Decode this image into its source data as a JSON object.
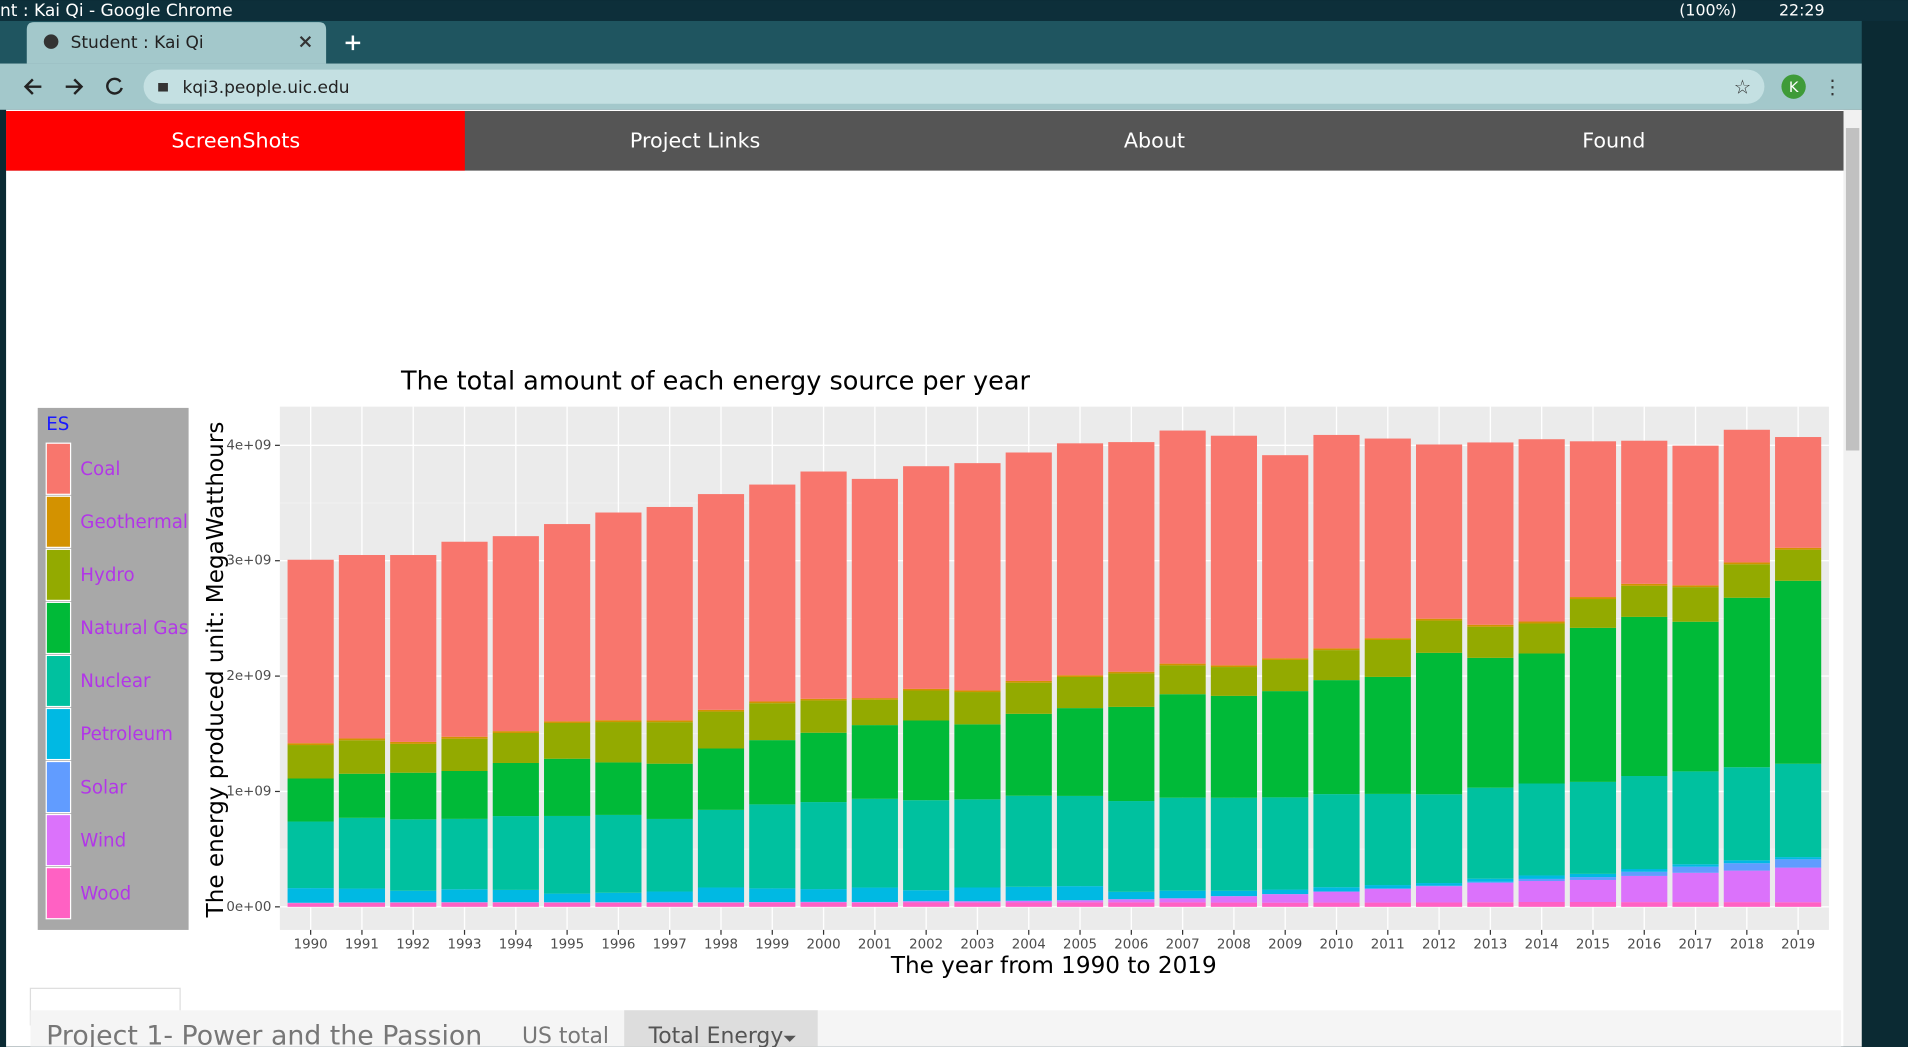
{
  "window": {
    "title": "nt : Kai Qi - Google Chrome",
    "battery": "(100%)",
    "time": "22:29"
  },
  "browser": {
    "tab": "Student : Kai Qi",
    "url": "kqi3.people.uic.edu",
    "profile": "K"
  },
  "nav": [
    "ScreenShots",
    "Project Links",
    "About",
    "Found"
  ],
  "footer": {
    "title": "Project 1- Power and the Passion",
    "tabs": [
      "US total",
      "Total Energy"
    ]
  },
  "chart_data": {
    "type": "stacked_bar",
    "title": "The total amount of each energy source per year",
    "x_label": "The year from 1990 to 2019",
    "y_label": "The energy produced unit: MegaWatthours",
    "legend_title": "ES",
    "categories": [
      "1990",
      "1991",
      "1992",
      "1993",
      "1994",
      "1995",
      "1996",
      "1997",
      "1998",
      "1999",
      "2000",
      "2001",
      "2002",
      "2003",
      "2004",
      "2005",
      "2006",
      "2007",
      "2008",
      "2009",
      "2010",
      "2011",
      "2012",
      "2013",
      "2014",
      "2015",
      "2016",
      "2017",
      "2018",
      "2019"
    ],
    "ylim": [
      -200000000,
      4335000000
    ],
    "yticks": [
      {
        "value": 0,
        "label": "0e+00"
      },
      {
        "value": 1000000000,
        "label": "1e+09"
      },
      {
        "value": 2000000000,
        "label": "2e+09"
      },
      {
        "value": 3000000000,
        "label": "3e+09"
      },
      {
        "value": 4000000000,
        "label": "4e+09"
      }
    ],
    "grid": true,
    "legend": "left",
    "series": [
      {
        "name": "Coal",
        "color": "#F8766D",
        "values": [
          1590000000.0,
          1590000000.0,
          1620000000.0,
          1690000000.0,
          1690000000.0,
          1710000000.0,
          1800000000.0,
          1850000000.0,
          1870000000.0,
          1880000000.0,
          1970000000.0,
          1900000000.0,
          1930000000.0,
          1970000000.0,
          1980000000.0,
          2010000000.0,
          1990000000.0,
          2020000000.0,
          1990000000.0,
          1760000000.0,
          1850000000.0,
          1730000000.0,
          1510000000.0,
          1580000000.0,
          1580000000.0,
          1350000000.0,
          1240000000.0,
          1210000000.0,
          1150000000.0,
          960000000.0
        ]
      },
      {
        "name": "Geothermal",
        "color": "#D39200",
        "values": [
          16000000.0,
          16000000.0,
          17000000.0,
          17000000.0,
          16000000.0,
          14000000.0,
          16000000.0,
          15000000.0,
          15000000.0,
          15000000.0,
          14000000.0,
          14000000.0,
          14000000.0,
          14000000.0,
          15000000.0,
          15000000.0,
          15000000.0,
          15000000.0,
          15000000.0,
          15000000.0,
          15000000.0,
          16000000.0,
          16000000.0,
          17000000.0,
          17000000.0,
          17000000.0,
          17000000.0,
          16000000.0,
          16000000.0,
          16000000.0
        ]
      },
      {
        "name": "Hydro",
        "color": "#93AA00",
        "values": [
          290000000.0,
          290000000.0,
          250000000.0,
          280000000.0,
          260000000.0,
          310000000.0,
          350000000.0,
          360000000.0,
          320000000.0,
          320000000.0,
          280000000.0,
          220000000.0,
          260000000.0,
          280000000.0,
          270000000.0,
          270000000.0,
          290000000.0,
          250000000.0,
          250000000.0,
          270000000.0,
          260000000.0,
          320000000.0,
          280000000.0,
          270000000.0,
          260000000.0,
          250000000.0,
          270000000.0,
          300000000.0,
          290000000.0,
          270000000.0
        ]
      },
      {
        "name": "Natural Gas",
        "color": "#00BA38",
        "values": [
          373000000.0,
          382000000.0,
          404000000.0,
          415000000.0,
          460000000.0,
          496000000.0,
          455000000.0,
          479000000.0,
          532000000.0,
          557000000.0,
          601000000.0,
          639000000.0,
          691000000.0,
          650000000.0,
          710000000.0,
          761000000.0,
          816000000.0,
          897000000.0,
          883000000.0,
          921000000.0,
          988000000.0,
          1014000000.0,
          1226000000.0,
          1125000000.0,
          1127000000.0,
          1335000000.0,
          1379000000.0,
          1297000000.0,
          1469000000.0,
          1586000000.0
        ]
      },
      {
        "name": "Nuclear",
        "color": "#00C19F",
        "values": [
          577000000.0,
          613000000.0,
          619000000.0,
          610000000.0,
          640000000.0,
          673000000.0,
          675000000.0,
          629000000.0,
          673000000.0,
          728000000.0,
          754000000.0,
          769000000.0,
          780000000.0,
          764000000.0,
          789000000.0,
          782000000.0,
          787000000.0,
          806000000.0,
          806000000.0,
          799000000.0,
          807000000.0,
          790000000.0,
          769000000.0,
          789000000.0,
          797000000.0,
          797000000.0,
          806000000.0,
          805000000.0,
          807000000.0,
          809000000.0
        ]
      },
      {
        "name": "Petroleum",
        "color": "#00B9E3",
        "values": [
          127000000.0,
          120000000.0,
          100000000.0,
          112000000.0,
          106000000.0,
          75000000.0,
          82000000.0,
          93000000.0,
          128000000.0,
          118000000.0,
          111000000.0,
          125000000.0,
          95000000.0,
          119000000.0,
          121000000.0,
          122000000.0,
          64000000.0,
          66000000.0,
          46000000.0,
          39000000.0,
          37000000.0,
          30000000.0,
          23000000.0,
          27000000.0,
          30000000.0,
          28000000.0,
          24000000.0,
          21000000.0,
          25000000.0,
          19000000.0
        ]
      },
      {
        "name": "Solar",
        "color": "#619CFF",
        "values": [
          400000.0,
          500000.0,
          400000.0,
          400000.0,
          500000.0,
          500000.0,
          500000.0,
          500000.0,
          500000.0,
          500000.0,
          500000.0,
          500000.0,
          600000.0,
          500000.0,
          600000.0,
          600000.0,
          500000.0,
          600000.0,
          900000.0,
          900000.0,
          1200000.0,
          1800000.0,
          4300000.0,
          9000000.0,
          18000000.0,
          25000000.0,
          36000000.0,
          53000000.0,
          64000000.0,
          72000000.0
        ]
      },
      {
        "name": "Wind",
        "color": "#DB72FB",
        "values": [
          3000000.0,
          3000000.0,
          3000000.0,
          3000000.0,
          3400000.0,
          3200000.0,
          3200000.0,
          3300000.0,
          3000000.0,
          4500000.0,
          5600000.0,
          6700000.0,
          10500000.0,
          11200000.0,
          14300000.0,
          17800000.0,
          26600000.0,
          34500000.0,
          55400000.0,
          73900000.0,
          94900000.0,
          120000000.0,
          141000000.0,
          168000000.0,
          182000000.0,
          191000000.0,
          227000000.0,
          254000000.0,
          273000000.0,
          300000000.0
        ]
      },
      {
        "name": "Wood",
        "color": "#FF61C3",
        "values": [
          32000000.0,
          35000000.0,
          36000000.0,
          37000000.0,
          37000000.0,
          36000000.0,
          36000000.0,
          36000000.0,
          36000000.0,
          37000000.0,
          37000000.0,
          35000000.0,
          38000000.0,
          37000000.0,
          38000000.0,
          39000000.0,
          39000000.0,
          39000000.0,
          37000000.0,
          36000000.0,
          37000000.0,
          37000000.0,
          38000000.0,
          40000000.0,
          42000000.0,
          42000000.0,
          41000000.0,
          41000000.0,
          41000000.0,
          40000000.0
        ]
      }
    ]
  }
}
